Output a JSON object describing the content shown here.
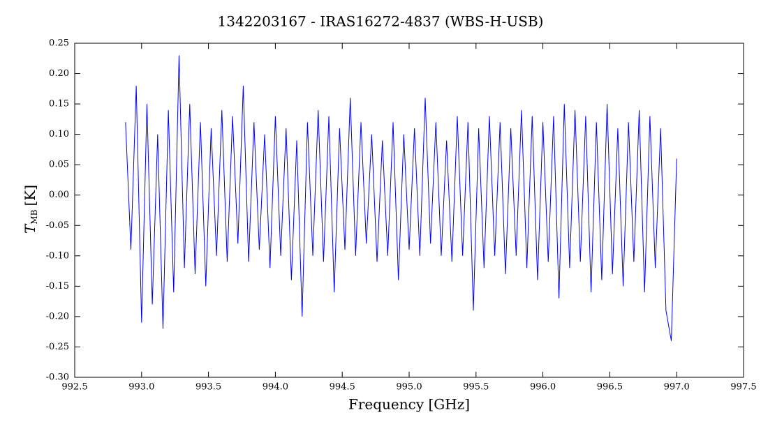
{
  "chart_data": {
    "type": "line",
    "title": "1342203167 - IRAS16272-4837 (WBS-H-USB)",
    "x_label": "Frequency [GHz]",
    "y_label": "T",
    "y_label_sub": "MB",
    "y_label_unit": "[K]",
    "color": "#0000ff",
    "x": [
      992.88,
      992.92,
      992.96,
      993.0,
      993.04,
      993.08,
      993.12,
      993.16,
      993.2,
      993.24,
      993.28,
      993.32,
      993.36,
      993.4,
      993.44,
      993.48,
      993.52,
      993.56,
      993.6,
      993.64,
      993.68,
      993.72,
      993.76,
      993.8,
      993.84,
      993.88,
      993.92,
      993.96,
      994.0,
      994.04,
      994.08,
      994.12,
      994.16,
      994.2,
      994.24,
      994.28,
      994.32,
      994.36,
      994.4,
      994.44,
      994.48,
      994.52,
      994.56,
      994.6,
      994.64,
      994.68,
      994.72,
      994.76,
      994.8,
      994.84,
      994.88,
      994.92,
      994.96,
      995.0,
      995.04,
      995.08,
      995.12,
      995.16,
      995.2,
      995.24,
      995.28,
      995.32,
      995.36,
      995.4,
      995.44,
      995.48,
      995.52,
      995.56,
      995.6,
      995.64,
      995.68,
      995.72,
      995.76,
      995.8,
      995.84,
      995.88,
      995.92,
      995.96,
      996.0,
      996.04,
      996.08,
      996.12,
      996.16,
      996.2,
      996.24,
      996.28,
      996.32,
      996.36,
      996.4,
      996.44,
      996.48,
      996.52,
      996.56,
      996.6,
      996.64,
      996.68,
      996.72,
      996.76,
      996.8,
      996.84,
      996.88,
      996.92,
      996.96,
      997.0
    ],
    "values": [
      0.12,
      -0.09,
      0.18,
      -0.21,
      0.15,
      -0.18,
      0.1,
      -0.22,
      0.14,
      -0.16,
      0.23,
      -0.12,
      0.15,
      -0.13,
      0.12,
      -0.15,
      0.11,
      -0.1,
      0.14,
      -0.11,
      0.13,
      -0.08,
      0.18,
      -0.11,
      0.12,
      -0.09,
      0.1,
      -0.12,
      0.13,
      -0.1,
      0.11,
      -0.14,
      0.09,
      -0.2,
      0.12,
      -0.1,
      0.14,
      -0.11,
      0.13,
      -0.16,
      0.11,
      -0.09,
      0.16,
      -0.1,
      0.12,
      -0.08,
      0.1,
      -0.11,
      0.09,
      -0.1,
      0.12,
      -0.14,
      0.1,
      -0.09,
      0.11,
      -0.1,
      0.16,
      -0.08,
      0.12,
      -0.1,
      0.09,
      -0.11,
      0.13,
      -0.1,
      0.12,
      -0.19,
      0.11,
      -0.12,
      0.13,
      -0.1,
      0.12,
      -0.13,
      0.11,
      -0.1,
      0.14,
      -0.12,
      0.13,
      -0.14,
      0.12,
      -0.11,
      0.13,
      -0.17,
      0.15,
      -0.12,
      0.14,
      -0.11,
      0.13,
      -0.16,
      0.12,
      -0.14,
      0.15,
      -0.13,
      0.11,
      -0.15,
      0.12,
      -0.11,
      0.14,
      -0.16,
      0.13,
      -0.12,
      0.11,
      -0.19,
      -0.24,
      0.06
    ],
    "xlim": [
      992.5,
      997.5
    ],
    "xticks": [
      992.5,
      {
        "value": 993,
        "label": "993.0"
      },
      993.5,
      {
        "value": 994,
        "label": "994.0"
      },
      994.5,
      {
        "value": 995,
        "label": "995.0"
      },
      995.5,
      {
        "value": 996,
        "label": "996.0"
      },
      996.5,
      {
        "value": 997,
        "label": "997.0"
      },
      997.5
    ],
    "ylim": [
      -0.3,
      0.25
    ],
    "yticks": [
      {
        "value": -0.3,
        "label": "-0.30"
      },
      {
        "value": -0.25,
        "label": "-0.25"
      },
      {
        "value": -0.2,
        "label": "-0.20"
      },
      {
        "value": -0.15,
        "label": "-0.15"
      },
      {
        "value": -0.1,
        "label": "-0.10"
      },
      {
        "value": -0.05,
        "label": "-0.05"
      },
      {
        "value": 0,
        "label": "0.00"
      },
      0.05,
      {
        "value": 0.1,
        "label": "0.10"
      },
      0.15,
      {
        "value": 0.2,
        "label": "0.20"
      },
      0.25
    ]
  }
}
